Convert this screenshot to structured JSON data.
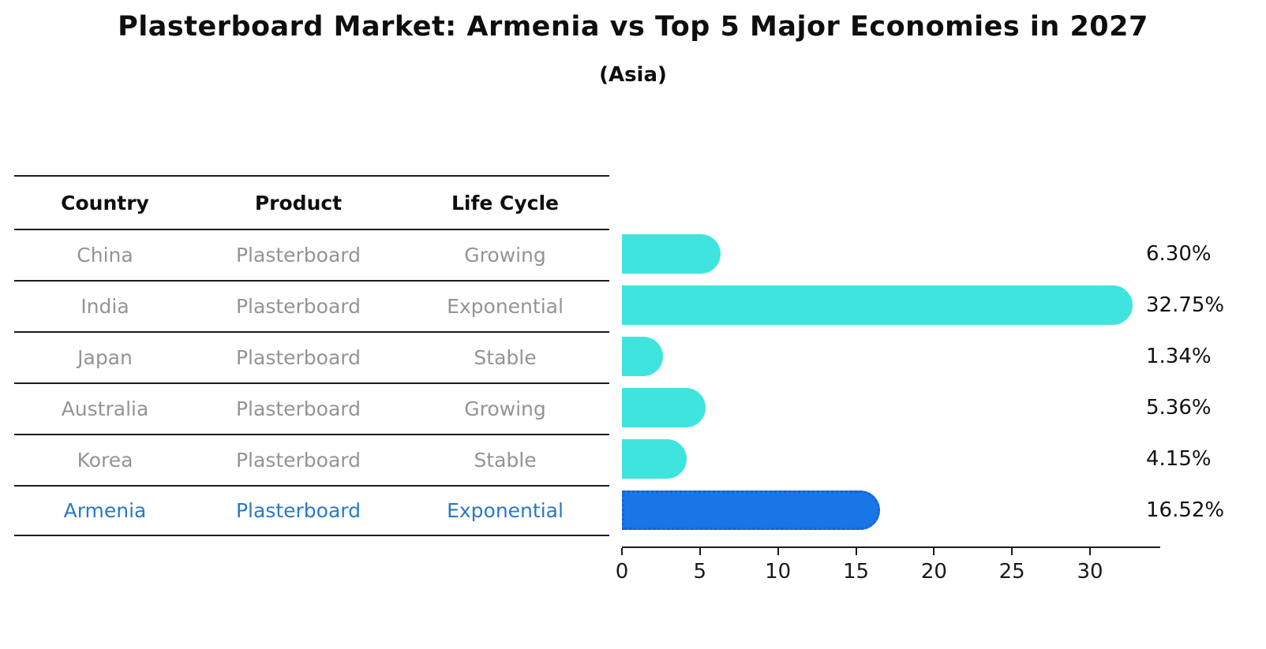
{
  "header": {
    "title": "Plasterboard Market: Armenia vs Top 5 Major Economies in 2027",
    "subtitle": "(Asia)"
  },
  "table": {
    "headers": [
      "Country",
      "Product",
      "Life Cycle"
    ],
    "rows": [
      {
        "country": "China",
        "product": "Plasterboard",
        "life_cycle": "Growing",
        "highlight": false
      },
      {
        "country": "India",
        "product": "Plasterboard",
        "life_cycle": "Exponential",
        "highlight": false
      },
      {
        "country": "Japan",
        "product": "Plasterboard",
        "life_cycle": "Stable",
        "highlight": false
      },
      {
        "country": "Australia",
        "product": "Plasterboard",
        "life_cycle": "Growing",
        "highlight": false
      },
      {
        "country": "Korea",
        "product": "Plasterboard",
        "life_cycle": "Stable",
        "highlight": false
      },
      {
        "country": "Armenia",
        "product": "Plasterboard",
        "life_cycle": "Exponential",
        "highlight": true
      }
    ]
  },
  "chart_data": {
    "type": "bar",
    "orientation": "horizontal",
    "title": "Plasterboard Market: Armenia vs Top 5 Major Economies in 2027",
    "subtitle": "(Asia)",
    "categories": [
      "China",
      "India",
      "Japan",
      "Australia",
      "Korea",
      "Armenia"
    ],
    "values": [
      6.3,
      32.75,
      1.34,
      5.36,
      4.15,
      16.52
    ],
    "value_labels": [
      "6.30%",
      "32.75%",
      "1.34%",
      "5.36%",
      "4.15%",
      "16.52%"
    ],
    "xlabel": "",
    "ylabel": "",
    "xlim": [
      0,
      34.5
    ],
    "xticks": [
      0,
      5,
      10,
      15,
      20,
      25,
      30
    ],
    "grid": false,
    "legend": "none",
    "highlight_category": "Armenia",
    "colors": {
      "bar_default": "#40e4de",
      "bar_highlight": "#1976e6",
      "bar_highlight_border": "#1e5fd0",
      "table_text_muted": "#949494",
      "table_text_highlight": "#2a79c5",
      "axis": "#1a1a1a"
    }
  }
}
